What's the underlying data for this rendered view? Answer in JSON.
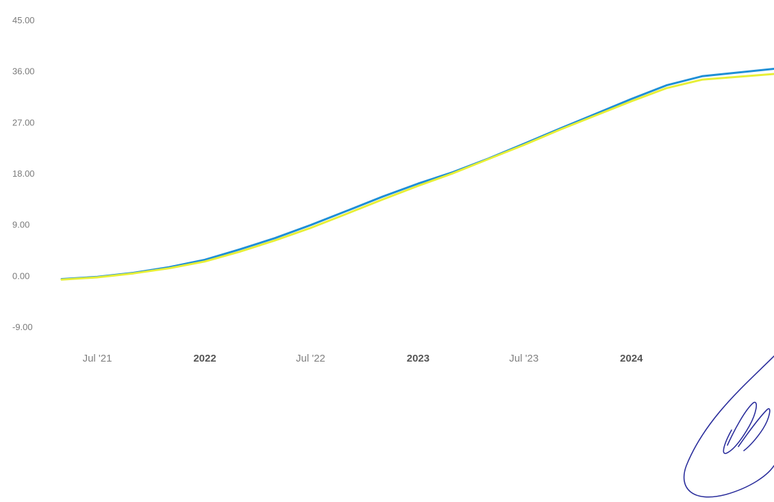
{
  "chart_data": {
    "type": "line",
    "title": "",
    "xlabel": "",
    "ylabel": "",
    "ylim": [
      -9,
      45
    ],
    "xlim": [
      "2021-05-01",
      "2024-09-01"
    ],
    "grid": false,
    "y_ticks": [
      "-9.00",
      "0.00",
      "9.00",
      "18.00",
      "27.00",
      "36.00",
      "45.00"
    ],
    "x_ticks": [
      {
        "date": "2021-07-01",
        "label": "Jul '21",
        "major": false
      },
      {
        "date": "2022-01-01",
        "label": "2022",
        "major": true
      },
      {
        "date": "2022-07-01",
        "label": "Jul '22",
        "major": false
      },
      {
        "date": "2023-01-01",
        "label": "2023",
        "major": true
      },
      {
        "date": "2023-07-01",
        "label": "Jul '23",
        "major": false
      },
      {
        "date": "2024-01-01",
        "label": "2024",
        "major": true
      }
    ],
    "series": [
      {
        "color": "#1f8fd6",
        "points": [
          [
            "2021-05-01",
            -0.5
          ],
          [
            "2021-07-01",
            -0.1
          ],
          [
            "2021-09-01",
            0.6
          ],
          [
            "2021-11-01",
            1.6
          ],
          [
            "2022-01-01",
            2.9
          ],
          [
            "2022-03-01",
            4.7
          ],
          [
            "2022-05-01",
            6.7
          ],
          [
            "2022-07-01",
            9.0
          ],
          [
            "2022-09-01",
            11.5
          ],
          [
            "2022-11-01",
            14.0
          ],
          [
            "2023-01-01",
            16.3
          ],
          [
            "2023-03-01",
            18.3
          ],
          [
            "2023-05-01",
            20.7
          ],
          [
            "2023-07-01",
            23.3
          ],
          [
            "2023-09-01",
            26.0
          ],
          [
            "2023-11-01",
            28.6
          ],
          [
            "2024-01-01",
            31.2
          ],
          [
            "2024-03-01",
            33.6
          ],
          [
            "2024-05-01",
            35.2
          ],
          [
            "2024-09-01",
            36.5
          ]
        ]
      },
      {
        "color": "#e7ef37",
        "points": [
          [
            "2021-05-01",
            -0.6
          ],
          [
            "2021-07-01",
            -0.2
          ],
          [
            "2021-09-01",
            0.5
          ],
          [
            "2021-11-01",
            1.4
          ],
          [
            "2022-01-01",
            2.6
          ],
          [
            "2022-03-01",
            4.3
          ],
          [
            "2022-05-01",
            6.3
          ],
          [
            "2022-07-01",
            8.5
          ],
          [
            "2022-09-01",
            11.0
          ],
          [
            "2022-11-01",
            13.5
          ],
          [
            "2023-01-01",
            15.9
          ],
          [
            "2023-03-01",
            18.1
          ],
          [
            "2023-05-01",
            20.6
          ],
          [
            "2023-07-01",
            23.1
          ],
          [
            "2023-09-01",
            25.8
          ],
          [
            "2023-11-01",
            28.3
          ],
          [
            "2024-01-01",
            30.8
          ],
          [
            "2024-03-01",
            33.1
          ],
          [
            "2024-05-01",
            34.6
          ],
          [
            "2024-09-01",
            35.6
          ]
        ]
      }
    ]
  }
}
